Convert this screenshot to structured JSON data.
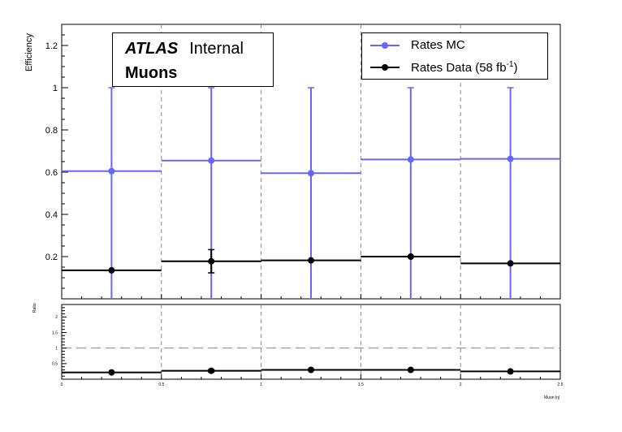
{
  "main_panel": {
    "ylabel": "Efficiency",
    "y_ticks": [
      "0.2",
      "0.4",
      "0.6",
      "0.8",
      "1",
      "1.2"
    ],
    "atlas_label": "ATLAS",
    "atlas_status": "Internal",
    "subtitle": "Muons"
  },
  "ratio_panel": {
    "ylabel": "Ratio",
    "y_ticks": [
      "0.5",
      "1",
      "1.5",
      "2"
    ],
    "xlabel": "Muon |η|",
    "x_ticks": [
      "0",
      "0.5",
      "1",
      "1.5",
      "2",
      "2.5"
    ]
  },
  "legend": {
    "mc_label": "Rates MC",
    "data_label_prefix": "Rates Data (58 fb",
    "data_label_exp": "-1",
    "data_label_suffix": ")"
  },
  "colors": {
    "mc": "#6666ff",
    "data": "#000000",
    "grid": "#888888"
  },
  "chart_data": [
    {
      "type": "scatter",
      "title": "",
      "xlabel": "",
      "ylabel": "Efficiency",
      "xlim": [
        0,
        2.5
      ],
      "ylim": [
        0,
        1.3
      ],
      "x": [
        0.25,
        0.75,
        1.25,
        1.75,
        2.25
      ],
      "x_err": [
        0.25,
        0.25,
        0.25,
        0.25,
        0.25
      ],
      "series": [
        {
          "name": "Rates MC",
          "values": [
            0.605,
            0.655,
            0.595,
            0.66,
            0.663
          ],
          "y_err_low": [
            0.605,
            0.655,
            0.595,
            0.66,
            0.663
          ],
          "y_err_high": [
            0.395,
            0.345,
            0.405,
            0.34,
            0.337
          ]
        },
        {
          "name": "Rates Data (58 fb-1)",
          "values": [
            0.135,
            0.178,
            0.182,
            0.2,
            0.168
          ],
          "y_err_low": [
            0.0,
            0.055,
            0.0,
            0.0,
            0.0
          ],
          "y_err_high": [
            0.0,
            0.055,
            0.0,
            0.0,
            0.0
          ]
        }
      ],
      "grid": "vertical dashed at bin edges",
      "legend": "top-right"
    },
    {
      "type": "scatter",
      "title": "",
      "xlabel": "Muon |η|",
      "ylabel": "Ratio",
      "xlim": [
        0,
        2.5
      ],
      "ylim": [
        0,
        2.4
      ],
      "x": [
        0.25,
        0.75,
        1.25,
        1.75,
        2.25
      ],
      "x_err": [
        0.25,
        0.25,
        0.25,
        0.25,
        0.25
      ],
      "series": [
        {
          "name": "Ratio",
          "values": [
            0.22,
            0.27,
            0.3,
            0.3,
            0.25
          ],
          "y_err_low": [
            0.0,
            0.04,
            0.0,
            0.0,
            0.0
          ],
          "y_err_high": [
            0.0,
            0.04,
            0.0,
            0.0,
            0.0
          ]
        }
      ],
      "reference_line": 1,
      "grid": "vertical dashed at bin edges"
    }
  ]
}
